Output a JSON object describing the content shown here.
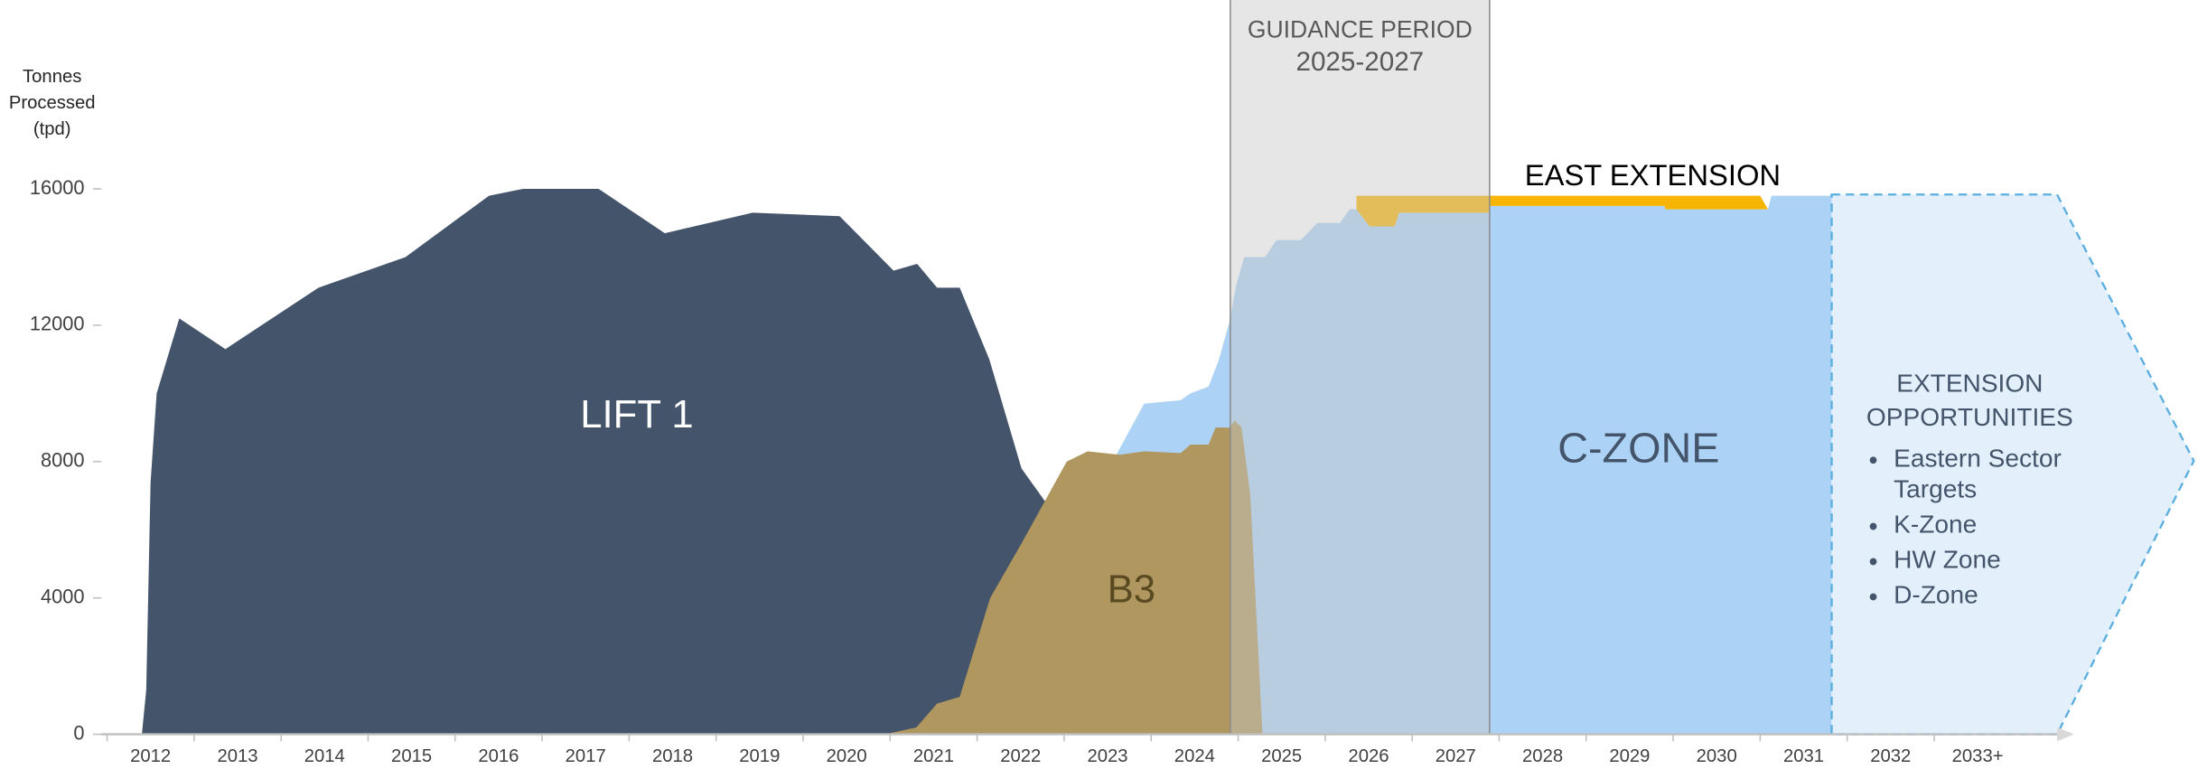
{
  "chart_data": {
    "type": "area",
    "y_axis_label": [
      "Tonnes",
      "Processed",
      "(tpd)"
    ],
    "ylim": [
      0,
      16000
    ],
    "yticks": [
      0,
      4000,
      8000,
      12000,
      16000
    ],
    "xlim": [
      2011.94,
      2034.57
    ],
    "xticks": [
      2012,
      2013,
      2014,
      2015,
      2016,
      2017,
      2018,
      2019,
      2020,
      2021,
      2022,
      2023,
      2024,
      2025,
      2026,
      2027,
      2028,
      2029,
      2030,
      2031,
      2032,
      {
        "value": 2033,
        "label": "2033+"
      }
    ],
    "series": [
      {
        "name": "LIFT 1",
        "color": "#44546a",
        "x": [
          2012.4,
          2012.45,
          2012.5,
          2012.57,
          2012.83,
          2013.36,
          2014.43,
          2015.43,
          2016.39,
          2016.78,
          2017.65,
          2018.41,
          2019.42,
          2020.42,
          2021.04,
          2021.31,
          2021.54,
          2021.8,
          2022.14,
          2022.51,
          2022.79,
          2023.1
        ],
        "values": [
          0,
          1300,
          7400,
          10000,
          12200,
          11300,
          13100,
          14000,
          15800,
          16000,
          16000,
          14700,
          15300,
          15200,
          13600,
          13800,
          13100,
          13100,
          11000,
          7800,
          6800,
          0
        ]
      },
      {
        "name": "C-ZONE",
        "color": "#acd3f5",
        "x": [
          2023.6,
          2023.92,
          2024.34,
          2024.45,
          2024.66,
          2024.78,
          2024.9,
          2024.98,
          2025.07,
          2025.31,
          2025.44,
          2025.72,
          2025.91,
          2026.17,
          2026.28,
          2026.36,
          2026.51,
          2026.8,
          2026.85,
          2027.89,
          2027.9,
          2029.9,
          2029.91,
          2031.09,
          2031.13,
          2031.82
        ],
        "values": [
          8200,
          9700,
          9800,
          10000,
          10200,
          11000,
          12100,
          13200,
          14000,
          14000,
          14500,
          14500,
          15000,
          15000,
          15400,
          15400,
          14900,
          14900,
          15300,
          15300,
          15500,
          15500,
          15400,
          15400,
          15800,
          15800
        ]
      },
      {
        "name": "EAST EXTENSION",
        "color": "#f7b500",
        "stack": true,
        "x": [
          2026.36,
          2026.51,
          2026.8,
          2026.85,
          2027.89,
          2027.9,
          2029.9,
          2029.91,
          2031.0,
          2031.09
        ],
        "values": [
          400,
          900,
          900,
          500,
          500,
          300,
          300,
          400,
          400,
          0
        ]
      },
      {
        "name": "B3",
        "color": "#b0975f",
        "x": [
          2020.94,
          2021.3,
          2021.54,
          2021.8,
          2022.15,
          2022.51,
          2023.03,
          2023.27,
          2023.64,
          2023.92,
          2024.34,
          2024.45,
          2024.66,
          2024.74,
          2024.9,
          2024.96,
          2025.04,
          2025.14,
          2025.22,
          2025.28
        ],
        "values": [
          0,
          200,
          900,
          1100,
          4000,
          5600,
          8000,
          8300,
          8200,
          8300,
          8250,
          8500,
          8500,
          9000,
          9000,
          9200,
          9000,
          7000,
          3000,
          0
        ]
      }
    ],
    "guidance": {
      "label": [
        "GUIDANCE PERIOD",
        "2025-2027"
      ],
      "range": [
        2024.91,
        2027.89
      ]
    },
    "extension_opportunities": {
      "title": [
        "EXTENSION",
        "OPPORTUNITIES"
      ],
      "items": [
        "Eastern Sector Targets",
        "K-Zone",
        "HW Zone",
        "D-Zone"
      ]
    }
  }
}
